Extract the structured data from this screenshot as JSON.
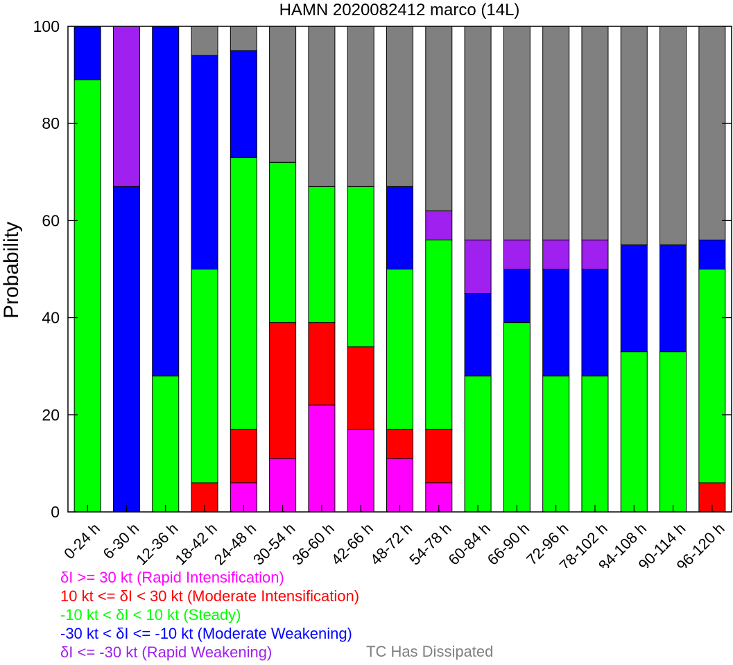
{
  "chart_data": {
    "type": "bar",
    "stacked": true,
    "title": "HAMN 2020082412 marco (14L)",
    "ylabel": "Probability",
    "ylim": [
      0,
      100
    ],
    "yticks": [
      0,
      20,
      40,
      60,
      80,
      100
    ],
    "categories": [
      "0-24 h",
      "6-30 h",
      "12-36 h",
      "18-42 h",
      "24-48 h",
      "30-54 h",
      "36-60 h",
      "42-66 h",
      "48-72 h",
      "54-78 h",
      "60-84 h",
      "66-90 h",
      "72-96 h",
      "78-102 h",
      "84-108 h",
      "90-114 h",
      "96-120 h"
    ],
    "series": [
      {
        "key": "ri",
        "color": "#ff00ff",
        "values": [
          0,
          0,
          0,
          0,
          6,
          11,
          22,
          17,
          11,
          6,
          0,
          0,
          0,
          0,
          0,
          0,
          0
        ]
      },
      {
        "key": "mi",
        "color": "#ff0000",
        "values": [
          0,
          0,
          0,
          6,
          11,
          28,
          17,
          17,
          6,
          11,
          0,
          0,
          0,
          0,
          0,
          0,
          6
        ]
      },
      {
        "key": "steady",
        "color": "#00ff00",
        "values": [
          89,
          0,
          28,
          44,
          56,
          33,
          28,
          33,
          33,
          39,
          28,
          39,
          28,
          28,
          33,
          33,
          44
        ]
      },
      {
        "key": "mw",
        "color": "#0000ff",
        "values": [
          11,
          67,
          72,
          44,
          22,
          0,
          0,
          0,
          17,
          0,
          17,
          11,
          22,
          22,
          22,
          22,
          6
        ]
      },
      {
        "key": "rw",
        "color": "#a020f0",
        "values": [
          0,
          33,
          0,
          0,
          0,
          0,
          0,
          0,
          0,
          6,
          11,
          6,
          6,
          6,
          0,
          0,
          0
        ]
      },
      {
        "key": "dissipated",
        "color": "#808080",
        "values": [
          0,
          0,
          0,
          6,
          5,
          28,
          33,
          33,
          33,
          38,
          44,
          44,
          44,
          44,
          45,
          45,
          44
        ]
      }
    ],
    "legend": {
      "ri": "δI >= 30 kt (Rapid Intensification)",
      "mi": "10 kt <= δI < 30 kt (Moderate Intensification)",
      "steady": "-10 kt < δI < 10 kt (Steady)",
      "mw": "-30 kt < δI <= -10 kt (Moderate Weakening)",
      "rw": "δI <= -30 kt (Rapid Weakening)",
      "dissipated": "TC Has Dissipated"
    },
    "legend_colors": {
      "ri": "#ff00ff",
      "mi": "#ff0000",
      "steady": "#00ff00",
      "mw": "#0000ff",
      "rw": "#a020f0",
      "dissipated": "#808080"
    }
  }
}
